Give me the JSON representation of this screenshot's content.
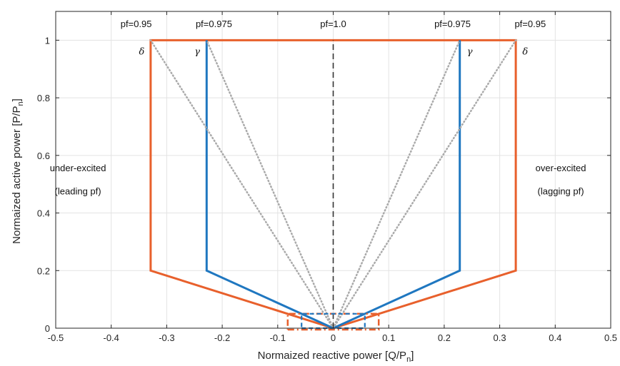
{
  "chart_data": {
    "type": "line",
    "xlabel": "Normaized reactive power [Q/P",
    "xlabel_sub": "n",
    "xlabel_end": "]",
    "ylabel": "Normaized active power [P/P",
    "ylabel_sub": "n",
    "ylabel_end": "]",
    "xlim": [
      -0.5,
      0.5
    ],
    "ylim": [
      0,
      1.1
    ],
    "grid": true,
    "xticks": [
      -0.5,
      -0.4,
      -0.3,
      -0.2,
      -0.1,
      0,
      0.1,
      0.2,
      0.3,
      0.4,
      0.5
    ],
    "xtick_labels": [
      "-0.5",
      "-0.4",
      "-0.3",
      "-0.2",
      "-0.1",
      "0",
      "0.1",
      "0.2",
      "0.3",
      "0.4",
      "0.5"
    ],
    "yticks": [
      0,
      0.2,
      0.4,
      0.6,
      0.8,
      1
    ],
    "ytick_labels": [
      "0",
      "0.2",
      "0.4",
      "0.6",
      "0.8",
      "1"
    ],
    "colors": {
      "orange": "#e8602c",
      "blue": "#1f77c0",
      "gray": "#aaaaaa",
      "dark": "#333333"
    },
    "series": [
      {
        "style": "orange-solid",
        "x": [
          0,
          -0.329,
          -0.329,
          0.329,
          0.329,
          0
        ],
        "y": [
          0,
          0.2,
          1,
          1,
          0.2,
          0
        ]
      },
      {
        "style": "blue-solid",
        "x": [
          0,
          -0.228,
          -0.228
        ],
        "y": [
          0,
          0.2,
          1
        ]
      },
      {
        "style": "blue-solid",
        "x": [
          0,
          0.228,
          0.228
        ],
        "y": [
          0,
          0.2,
          1
        ]
      },
      {
        "style": "gray-dotted",
        "x": [
          0,
          -0.329
        ],
        "y": [
          0,
          1
        ]
      },
      {
        "style": "gray-dotted",
        "x": [
          0,
          -0.228
        ],
        "y": [
          0,
          1
        ]
      },
      {
        "style": "gray-dotted",
        "x": [
          0,
          0.228
        ],
        "y": [
          0,
          1
        ]
      },
      {
        "style": "gray-dotted",
        "x": [
          0,
          0.329
        ],
        "y": [
          0,
          1
        ]
      },
      {
        "style": "black-dashed",
        "x": [
          0,
          0
        ],
        "y": [
          0,
          1
        ]
      },
      {
        "style": "orange-dashdot",
        "x": [
          -0.082,
          0.082,
          0.082,
          -0.082,
          -0.082
        ],
        "y": [
          -0.005,
          -0.005,
          0.05,
          0.05,
          -0.005
        ]
      },
      {
        "style": "blue-dashed",
        "x": [
          -0.057,
          0.057,
          0.057,
          -0.057,
          -0.057
        ],
        "y": [
          0,
          0,
          0.05,
          0.05,
          0
        ]
      }
    ],
    "annotations": [
      {
        "text": "pf=0.95",
        "x": -0.355,
        "y": 1.045
      },
      {
        "text": "pf=0.975",
        "x": -0.215,
        "y": 1.045
      },
      {
        "text": "pf=1.0",
        "x": 0,
        "y": 1.045
      },
      {
        "text": "pf=0.975",
        "x": 0.215,
        "y": 1.045
      },
      {
        "text": "pf=0.95",
        "x": 0.355,
        "y": 1.045
      },
      {
        "text": "under-excited",
        "x": -0.46,
        "y": 0.545
      },
      {
        "text": "(leading pf)",
        "x": -0.46,
        "y": 0.465
      },
      {
        "text": "over-excited",
        "x": 0.41,
        "y": 0.545
      },
      {
        "text": "(lagging pf)",
        "x": 0.41,
        "y": 0.465
      }
    ],
    "greek_labels": [
      {
        "text": "δ",
        "x": -0.345,
        "y": 0.97
      },
      {
        "text": "γ",
        "x": -0.245,
        "y": 0.97
      },
      {
        "text": "γ",
        "x": 0.246,
        "y": 0.97
      },
      {
        "text": "δ",
        "x": 0.346,
        "y": 0.97
      }
    ]
  }
}
